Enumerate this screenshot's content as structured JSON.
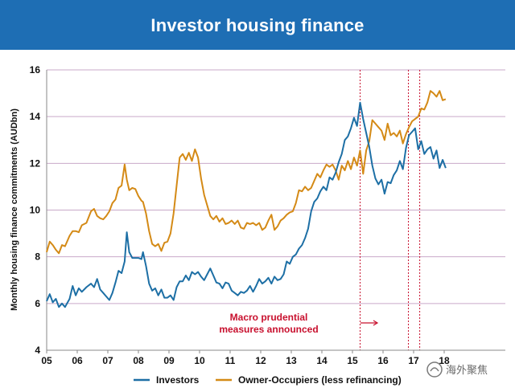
{
  "header": {
    "title": "Investor housing finance"
  },
  "colors": {
    "banner": "#1e6eb4",
    "investors": "#1d6fa5",
    "owner_occupiers": "#d48a16",
    "macro_lines": "#c8102e",
    "grid": "#c9a9c9"
  },
  "watermark": {
    "text": "海外聚焦"
  },
  "chart_data": {
    "type": "line",
    "title": "Investor housing finance",
    "ylabel": "Monthly housing finance commitments (AUDbn)",
    "xlabel": "",
    "ylim": [
      4,
      16
    ],
    "xlim": [
      2005,
      2020
    ],
    "x_tick_labels": [
      "05",
      "06",
      "07",
      "08",
      "09",
      "10",
      "11",
      "12",
      "13",
      "14",
      "15",
      "16",
      "17",
      "18"
    ],
    "y_tick_labels": [
      "4",
      "6",
      "8",
      "10",
      "12",
      "14",
      "16"
    ],
    "grid": "horizontal",
    "legend_position": "bottom",
    "annotation": {
      "lines": [
        "Macro prudential",
        "measures announced"
      ],
      "x": 2015.0,
      "y": 5.15
    },
    "vertical_markers": [
      2015.25,
      2016.83,
      2017.2
    ],
    "series": [
      {
        "name": "Investors",
        "color": "#1d6fa5",
        "points": [
          [
            2005.0,
            6.1
          ],
          [
            2005.1,
            6.4
          ],
          [
            2005.2,
            6.05
          ],
          [
            2005.3,
            6.2
          ],
          [
            2005.4,
            5.85
          ],
          [
            2005.5,
            6.0
          ],
          [
            2005.6,
            5.85
          ],
          [
            2005.75,
            6.2
          ],
          [
            2005.85,
            6.75
          ],
          [
            2005.95,
            6.35
          ],
          [
            2006.05,
            6.65
          ],
          [
            2006.15,
            6.5
          ],
          [
            2006.3,
            6.7
          ],
          [
            2006.45,
            6.85
          ],
          [
            2006.55,
            6.7
          ],
          [
            2006.65,
            7.05
          ],
          [
            2006.75,
            6.6
          ],
          [
            2006.85,
            6.45
          ],
          [
            2006.95,
            6.3
          ],
          [
            2007.05,
            6.15
          ],
          [
            2007.15,
            6.45
          ],
          [
            2007.25,
            6.9
          ],
          [
            2007.35,
            7.4
          ],
          [
            2007.45,
            7.3
          ],
          [
            2007.55,
            7.8
          ],
          [
            2007.62,
            9.05
          ],
          [
            2007.7,
            8.2
          ],
          [
            2007.8,
            7.95
          ],
          [
            2007.9,
            7.95
          ],
          [
            2008.0,
            7.95
          ],
          [
            2008.1,
            7.9
          ],
          [
            2008.15,
            8.2
          ],
          [
            2008.25,
            7.6
          ],
          [
            2008.35,
            6.85
          ],
          [
            2008.45,
            6.55
          ],
          [
            2008.55,
            6.65
          ],
          [
            2008.65,
            6.35
          ],
          [
            2008.75,
            6.6
          ],
          [
            2008.85,
            6.25
          ],
          [
            2008.95,
            6.25
          ],
          [
            2009.05,
            6.35
          ],
          [
            2009.15,
            6.15
          ],
          [
            2009.25,
            6.7
          ],
          [
            2009.35,
            6.95
          ],
          [
            2009.45,
            6.95
          ],
          [
            2009.55,
            7.2
          ],
          [
            2009.65,
            7.0
          ],
          [
            2009.75,
            7.35
          ],
          [
            2009.85,
            7.25
          ],
          [
            2009.95,
            7.35
          ],
          [
            2010.05,
            7.15
          ],
          [
            2010.15,
            7.0
          ],
          [
            2010.25,
            7.25
          ],
          [
            2010.35,
            7.5
          ],
          [
            2010.45,
            7.2
          ],
          [
            2010.55,
            6.9
          ],
          [
            2010.65,
            6.85
          ],
          [
            2010.75,
            6.65
          ],
          [
            2010.85,
            6.9
          ],
          [
            2010.95,
            6.85
          ],
          [
            2011.05,
            6.55
          ],
          [
            2011.15,
            6.45
          ],
          [
            2011.25,
            6.35
          ],
          [
            2011.35,
            6.5
          ],
          [
            2011.45,
            6.45
          ],
          [
            2011.55,
            6.55
          ],
          [
            2011.65,
            6.75
          ],
          [
            2011.75,
            6.5
          ],
          [
            2011.85,
            6.75
          ],
          [
            2011.95,
            7.05
          ],
          [
            2012.05,
            6.85
          ],
          [
            2012.15,
            6.95
          ],
          [
            2012.25,
            7.1
          ],
          [
            2012.35,
            6.85
          ],
          [
            2012.45,
            7.15
          ],
          [
            2012.55,
            7.0
          ],
          [
            2012.65,
            7.05
          ],
          [
            2012.75,
            7.25
          ],
          [
            2012.85,
            7.8
          ],
          [
            2012.95,
            7.7
          ],
          [
            2013.05,
            8.0
          ],
          [
            2013.15,
            8.1
          ],
          [
            2013.25,
            8.35
          ],
          [
            2013.35,
            8.5
          ],
          [
            2013.45,
            8.8
          ],
          [
            2013.55,
            9.2
          ],
          [
            2013.65,
            9.95
          ],
          [
            2013.75,
            10.35
          ],
          [
            2013.85,
            10.5
          ],
          [
            2013.95,
            10.8
          ],
          [
            2014.05,
            11.0
          ],
          [
            2014.15,
            10.85
          ],
          [
            2014.25,
            11.4
          ],
          [
            2014.35,
            11.3
          ],
          [
            2014.45,
            11.6
          ],
          [
            2014.55,
            12.05
          ],
          [
            2014.65,
            12.4
          ],
          [
            2014.75,
            13.0
          ],
          [
            2014.85,
            13.15
          ],
          [
            2014.95,
            13.5
          ],
          [
            2015.05,
            13.95
          ],
          [
            2015.15,
            13.6
          ],
          [
            2015.25,
            14.6
          ],
          [
            2015.35,
            13.9
          ],
          [
            2015.45,
            13.3
          ],
          [
            2015.55,
            12.7
          ],
          [
            2015.65,
            11.9
          ],
          [
            2015.75,
            11.35
          ],
          [
            2015.85,
            11.1
          ],
          [
            2015.95,
            11.3
          ],
          [
            2016.05,
            10.7
          ],
          [
            2016.15,
            11.2
          ],
          [
            2016.25,
            11.15
          ],
          [
            2016.35,
            11.5
          ],
          [
            2016.45,
            11.7
          ],
          [
            2016.55,
            12.1
          ],
          [
            2016.65,
            11.75
          ],
          [
            2016.75,
            12.65
          ],
          [
            2016.85,
            13.2
          ],
          [
            2016.95,
            13.35
          ],
          [
            2017.05,
            13.5
          ],
          [
            2017.15,
            12.6
          ],
          [
            2017.25,
            12.95
          ],
          [
            2017.35,
            12.4
          ],
          [
            2017.45,
            12.6
          ],
          [
            2017.55,
            12.7
          ],
          [
            2017.65,
            12.2
          ],
          [
            2017.75,
            12.55
          ],
          [
            2017.85,
            11.8
          ],
          [
            2017.95,
            12.15
          ],
          [
            2018.05,
            11.8
          ]
        ]
      },
      {
        "name": "Owner-Occupiers (less refinancing)",
        "color": "#d48a16",
        "points": [
          [
            2005.0,
            8.2
          ],
          [
            2005.1,
            8.65
          ],
          [
            2005.2,
            8.5
          ],
          [
            2005.3,
            8.3
          ],
          [
            2005.4,
            8.15
          ],
          [
            2005.5,
            8.5
          ],
          [
            2005.6,
            8.45
          ],
          [
            2005.75,
            8.9
          ],
          [
            2005.85,
            9.1
          ],
          [
            2005.95,
            9.1
          ],
          [
            2006.05,
            9.05
          ],
          [
            2006.15,
            9.35
          ],
          [
            2006.3,
            9.45
          ],
          [
            2006.45,
            9.95
          ],
          [
            2006.55,
            10.05
          ],
          [
            2006.65,
            9.75
          ],
          [
            2006.75,
            9.65
          ],
          [
            2006.85,
            9.6
          ],
          [
            2006.95,
            9.75
          ],
          [
            2007.05,
            9.95
          ],
          [
            2007.15,
            10.3
          ],
          [
            2007.25,
            10.45
          ],
          [
            2007.35,
            10.95
          ],
          [
            2007.45,
            11.05
          ],
          [
            2007.55,
            11.95
          ],
          [
            2007.62,
            11.3
          ],
          [
            2007.7,
            10.85
          ],
          [
            2007.8,
            10.95
          ],
          [
            2007.9,
            10.9
          ],
          [
            2008.0,
            10.6
          ],
          [
            2008.1,
            10.4
          ],
          [
            2008.15,
            10.35
          ],
          [
            2008.25,
            9.85
          ],
          [
            2008.35,
            9.1
          ],
          [
            2008.45,
            8.55
          ],
          [
            2008.55,
            8.45
          ],
          [
            2008.65,
            8.55
          ],
          [
            2008.75,
            8.25
          ],
          [
            2008.85,
            8.6
          ],
          [
            2008.95,
            8.65
          ],
          [
            2009.05,
            9.0
          ],
          [
            2009.15,
            9.85
          ],
          [
            2009.25,
            11.05
          ],
          [
            2009.35,
            12.25
          ],
          [
            2009.45,
            12.4
          ],
          [
            2009.55,
            12.15
          ],
          [
            2009.65,
            12.45
          ],
          [
            2009.75,
            12.1
          ],
          [
            2009.85,
            12.6
          ],
          [
            2009.95,
            12.25
          ],
          [
            2010.05,
            11.35
          ],
          [
            2010.15,
            10.65
          ],
          [
            2010.25,
            10.2
          ],
          [
            2010.35,
            9.75
          ],
          [
            2010.45,
            9.6
          ],
          [
            2010.55,
            9.75
          ],
          [
            2010.65,
            9.5
          ],
          [
            2010.75,
            9.65
          ],
          [
            2010.85,
            9.4
          ],
          [
            2010.95,
            9.45
          ],
          [
            2011.05,
            9.55
          ],
          [
            2011.15,
            9.4
          ],
          [
            2011.25,
            9.55
          ],
          [
            2011.35,
            9.25
          ],
          [
            2011.45,
            9.2
          ],
          [
            2011.55,
            9.45
          ],
          [
            2011.65,
            9.4
          ],
          [
            2011.75,
            9.45
          ],
          [
            2011.85,
            9.35
          ],
          [
            2011.95,
            9.45
          ],
          [
            2012.05,
            9.15
          ],
          [
            2012.15,
            9.25
          ],
          [
            2012.25,
            9.55
          ],
          [
            2012.35,
            9.8
          ],
          [
            2012.45,
            9.15
          ],
          [
            2012.55,
            9.3
          ],
          [
            2012.65,
            9.55
          ],
          [
            2012.75,
            9.65
          ],
          [
            2012.85,
            9.8
          ],
          [
            2012.95,
            9.9
          ],
          [
            2013.05,
            9.95
          ],
          [
            2013.15,
            10.3
          ],
          [
            2013.25,
            10.85
          ],
          [
            2013.35,
            10.8
          ],
          [
            2013.45,
            11.0
          ],
          [
            2013.55,
            10.85
          ],
          [
            2013.65,
            10.95
          ],
          [
            2013.75,
            11.25
          ],
          [
            2013.85,
            11.55
          ],
          [
            2013.95,
            11.4
          ],
          [
            2014.05,
            11.7
          ],
          [
            2014.15,
            11.95
          ],
          [
            2014.25,
            11.85
          ],
          [
            2014.35,
            11.95
          ],
          [
            2014.45,
            11.7
          ],
          [
            2014.55,
            11.3
          ],
          [
            2014.65,
            11.9
          ],
          [
            2014.75,
            11.7
          ],
          [
            2014.85,
            12.1
          ],
          [
            2014.95,
            11.75
          ],
          [
            2015.05,
            12.25
          ],
          [
            2015.15,
            11.9
          ],
          [
            2015.25,
            12.55
          ],
          [
            2015.35,
            11.55
          ],
          [
            2015.45,
            12.55
          ],
          [
            2015.55,
            12.95
          ],
          [
            2015.65,
            13.85
          ],
          [
            2015.75,
            13.7
          ],
          [
            2015.85,
            13.55
          ],
          [
            2015.95,
            13.4
          ],
          [
            2016.05,
            13.0
          ],
          [
            2016.15,
            13.7
          ],
          [
            2016.25,
            13.2
          ],
          [
            2016.35,
            13.3
          ],
          [
            2016.45,
            13.15
          ],
          [
            2016.55,
            13.4
          ],
          [
            2016.65,
            12.85
          ],
          [
            2016.75,
            13.25
          ],
          [
            2016.85,
            13.55
          ],
          [
            2016.95,
            13.8
          ],
          [
            2017.05,
            13.9
          ],
          [
            2017.15,
            14.0
          ],
          [
            2017.25,
            14.35
          ],
          [
            2017.35,
            14.3
          ],
          [
            2017.45,
            14.6
          ],
          [
            2017.55,
            15.1
          ],
          [
            2017.65,
            15.0
          ],
          [
            2017.75,
            14.85
          ],
          [
            2017.85,
            15.1
          ],
          [
            2017.95,
            14.7
          ],
          [
            2018.05,
            14.75
          ]
        ]
      }
    ]
  }
}
